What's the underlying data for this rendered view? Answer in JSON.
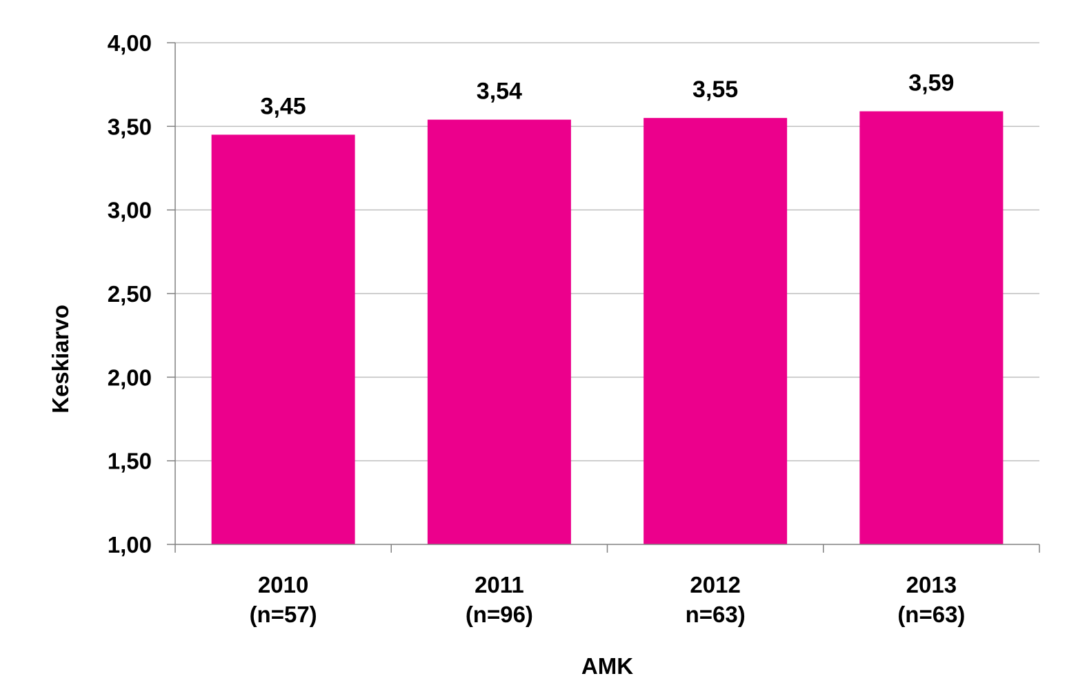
{
  "chart_data": {
    "type": "bar",
    "categories": [
      "2010\n(n=57)",
      "2011\n(n=96)",
      "2012\nn=63)",
      "2013\n(n=63)"
    ],
    "category_lines": [
      [
        "2010",
        "(n=57)"
      ],
      [
        "2011",
        "(n=96)"
      ],
      [
        "2012",
        "n=63)"
      ],
      [
        "2013",
        "(n=63)"
      ]
    ],
    "values": [
      3.45,
      3.54,
      3.55,
      3.59
    ],
    "data_labels": [
      "3,45",
      "3,54",
      "3,55",
      "3,59"
    ],
    "title": "",
    "xlabel": "AMK",
    "ylabel": "Keskiarvo",
    "ylim": [
      1.0,
      4.0
    ],
    "yticks": [
      1.0,
      1.5,
      2.0,
      2.5,
      3.0,
      3.5,
      4.0
    ],
    "ytick_labels": [
      "1,00",
      "1,50",
      "2,00",
      "2,50",
      "3,00",
      "3,50",
      "4,00"
    ],
    "grid": true,
    "legend": "none",
    "colors": {
      "bar": "#EC008C",
      "grid": "#BFBFBF",
      "axis": "#808080",
      "text": "#000000"
    }
  }
}
